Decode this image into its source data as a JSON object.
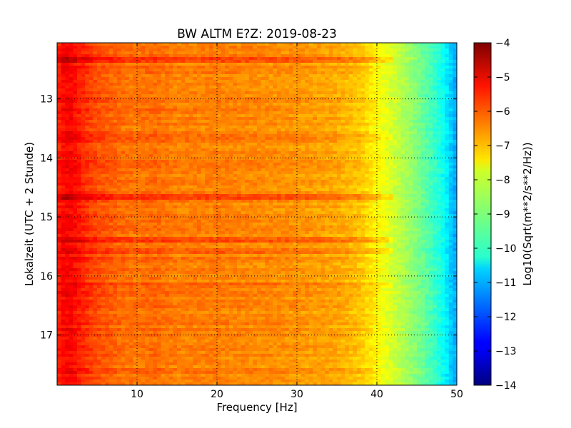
{
  "chart_data": {
    "type": "heatmap",
    "title": "BW ALTM E?Z: 2019-08-23",
    "xlabel": "Frequency [Hz]",
    "ylabel": "Lokalzeit (UTC + 2 Stunde)",
    "xlim": [
      0,
      50
    ],
    "ylim": [
      12.05,
      17.85
    ],
    "y_inverted": true,
    "x_ticks": [
      10,
      20,
      30,
      40,
      50
    ],
    "x_tick_labels": [
      "10",
      "20",
      "30",
      "40",
      "50"
    ],
    "y_ticks": [
      13,
      14,
      15,
      16,
      17
    ],
    "y_tick_labels": [
      "13",
      "14",
      "15",
      "16",
      "17"
    ],
    "grid": true,
    "colormap": "jet",
    "colorbar": {
      "label": "Log10(Sqrt(m**2/s**2/Hz))",
      "range": [
        -14,
        -4
      ],
      "ticks": [
        -4,
        -5,
        -6,
        -7,
        -8,
        -9,
        -10,
        -11,
        -12,
        -13,
        -14
      ],
      "tick_labels": [
        "−4",
        "−5",
        "−6",
        "−7",
        "−8",
        "−9",
        "−10",
        "−11",
        "−12",
        "−13",
        "−14"
      ]
    },
    "spectrum_profile": {
      "frequency_hz": [
        0,
        1,
        2,
        3,
        5,
        8,
        10,
        12,
        15,
        20,
        25,
        30,
        35,
        38,
        40,
        42,
        44,
        46,
        48,
        49,
        50
      ],
      "level": [
        -5.6,
        -5.2,
        -5.3,
        -5.6,
        -6.0,
        -6.3,
        -6.4,
        -6.3,
        -6.5,
        -6.5,
        -6.6,
        -6.7,
        -6.9,
        -7.2,
        -7.7,
        -8.2,
        -8.7,
        -9.3,
        -10.0,
        -10.6,
        -11.2
      ]
    },
    "bands": [
      {
        "time": 12.3,
        "delta": 0.5
      },
      {
        "time": 13.6,
        "delta": 0.35
      },
      {
        "time": 14.65,
        "delta": 0.6
      },
      {
        "time": 15.37,
        "delta": 0.55
      },
      {
        "time": 15.55,
        "delta": 0.45
      },
      {
        "time": 16.15,
        "delta": 0.3
      }
    ]
  }
}
